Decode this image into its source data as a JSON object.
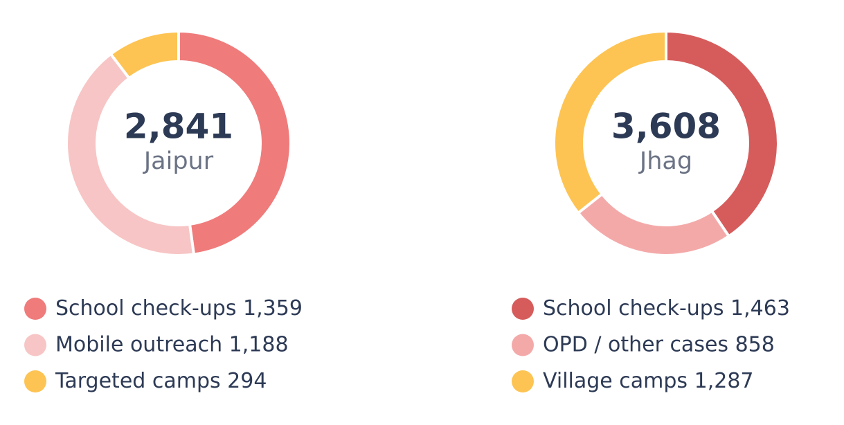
{
  "chart_data": [
    {
      "type": "pie",
      "donut": true,
      "title": "Jaipur",
      "total": {
        "value": 2841,
        "label": "2,841"
      },
      "categories": [
        "School check-ups",
        "Mobile outreach",
        "Targeted camps"
      ],
      "values": [
        1359,
        1188,
        294
      ],
      "value_labels": [
        "1,359",
        "1,188",
        "294"
      ],
      "colors": [
        "#f07b7b",
        "#f7c5c5",
        "#fdc453"
      ]
    },
    {
      "type": "pie",
      "donut": true,
      "title": "Jhag",
      "total": {
        "value": 3608,
        "label": "3,608"
      },
      "categories": [
        "School check-ups",
        "OPD / other cases",
        "Village camps"
      ],
      "values": [
        1463,
        858,
        1287
      ],
      "value_labels": [
        "1,463",
        "858",
        "1,287"
      ],
      "colors": [
        "#d65c5c",
        "#f4a9a9",
        "#fdc453"
      ]
    }
  ]
}
